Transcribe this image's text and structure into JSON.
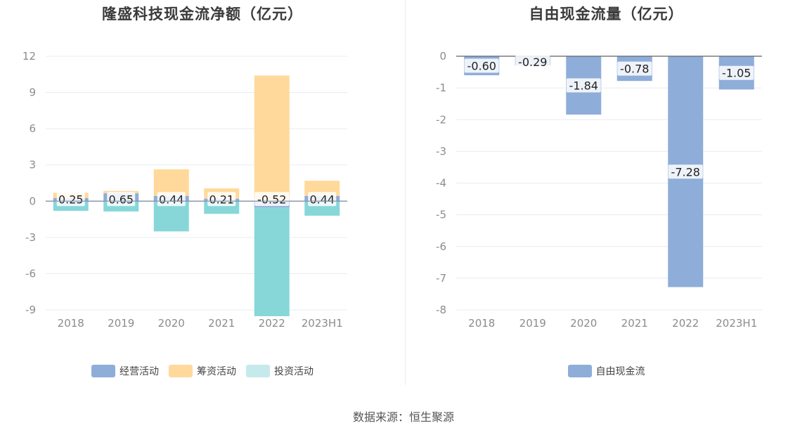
{
  "source": "数据来源：恒生聚源",
  "colors": {
    "operating": "#8eadd9",
    "financing": "#ffd99b",
    "investing": "#87d7d9",
    "investing_legend": "#c6eaec",
    "grid": "#e9ecf2",
    "zero": "#8a93a8",
    "tick": "#8c8c8c"
  },
  "chart_data": [
    {
      "type": "bar",
      "stacked": true,
      "title": "隆盛科技现金流净额（亿元）",
      "categories": [
        "2018",
        "2019",
        "2020",
        "2021",
        "2022",
        "2023H1"
      ],
      "ylim": [
        -9,
        12
      ],
      "yticks": [
        12,
        9,
        6,
        3,
        0,
        -3,
        -6,
        -9
      ],
      "grid": true,
      "legend_position": "bottom",
      "series": [
        {
          "name": "经营活动",
          "color": "#8eadd9",
          "values": [
            0.25,
            0.65,
            0.44,
            0.21,
            -0.52,
            0.44
          ],
          "labels": [
            "0.25",
            "0.65",
            "0.44",
            "0.21",
            "-0.52",
            "0.44"
          ]
        },
        {
          "name": "筹资活动",
          "color": "#ffd99b",
          "values": [
            0.45,
            0.2,
            2.2,
            0.85,
            10.4,
            1.25
          ]
        },
        {
          "name": "投资活动",
          "color": "#87d7d9",
          "legend_color": "#c6eaec",
          "values": [
            -0.8,
            -0.85,
            -2.5,
            -1.05,
            -9.0,
            -1.2
          ]
        }
      ]
    },
    {
      "type": "bar",
      "title": "自由现金流量（亿元）",
      "categories": [
        "2018",
        "2019",
        "2020",
        "2021",
        "2022",
        "2023H1"
      ],
      "ylim": [
        -8,
        0
      ],
      "yticks": [
        0,
        -1,
        -2,
        -3,
        -4,
        -5,
        -6,
        -7,
        -8
      ],
      "grid": true,
      "legend_position": "bottom",
      "series": [
        {
          "name": "自由现金流",
          "color": "#8eadd9",
          "values": [
            -0.6,
            -0.29,
            -1.84,
            -0.78,
            -7.28,
            -1.05
          ],
          "labels": [
            "-0.60",
            "-0.29",
            "-1.84",
            "-0.78",
            "-7.28",
            "-1.05"
          ]
        }
      ]
    }
  ]
}
